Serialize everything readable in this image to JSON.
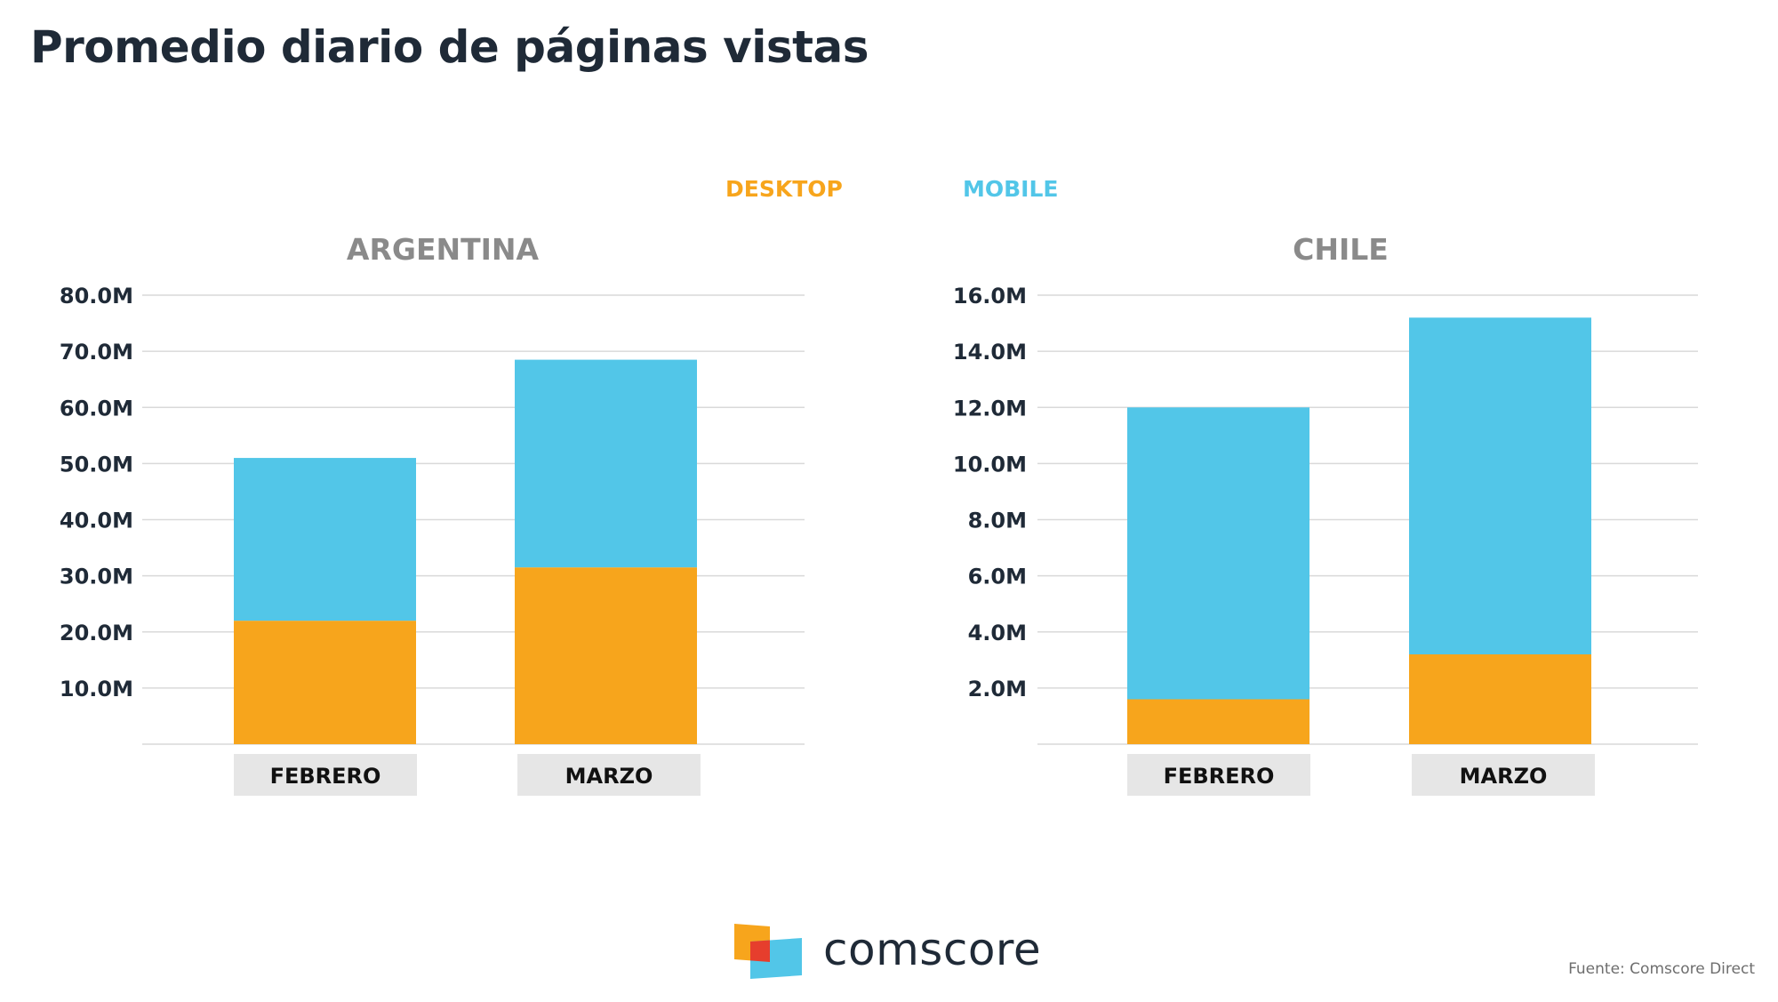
{
  "title": "Promedio diario de páginas vistas",
  "legend": {
    "desktop": "DESKTOP",
    "mobile": "MOBILE"
  },
  "colors": {
    "desktop": "#f7a51c",
    "mobile": "#52c6e8",
    "title": "#1f2a37",
    "panel_title": "#8a8a8a",
    "grid": "#d9d9d9",
    "category_box": "#e6e6e6"
  },
  "chart_data": [
    {
      "type": "bar",
      "stacked": true,
      "title": "ARGENTINA",
      "categories": [
        "FEBRERO",
        "MARZO"
      ],
      "series": [
        {
          "name": "DESKTOP",
          "values": [
            22.0,
            31.5
          ]
        },
        {
          "name": "MOBILE",
          "values": [
            29.0,
            37.0
          ]
        }
      ],
      "ylim": [
        0,
        80
      ],
      "yticks": [
        10,
        20,
        30,
        40,
        50,
        60,
        70,
        80
      ],
      "ytick_labels": [
        "10.0M",
        "20.0M",
        "30.0M",
        "40.0M",
        "50.0M",
        "60.0M",
        "70.0M",
        "80.0M"
      ],
      "grid": true,
      "legend": "top-center"
    },
    {
      "type": "bar",
      "stacked": true,
      "title": "CHILE",
      "categories": [
        "FEBRERO",
        "MARZO"
      ],
      "series": [
        {
          "name": "DESKTOP",
          "values": [
            1.6,
            3.2
          ]
        },
        {
          "name": "MOBILE",
          "values": [
            10.4,
            12.0
          ]
        }
      ],
      "ylim": [
        0,
        16
      ],
      "yticks": [
        2,
        4,
        6,
        8,
        10,
        12,
        14,
        16
      ],
      "ytick_labels": [
        "2.0M",
        "4.0M",
        "6.0M",
        "8.0M",
        "10.0M",
        "12.0M",
        "14.0M",
        "16.0M"
      ],
      "grid": true,
      "legend": "top-center"
    }
  ],
  "logo": {
    "text": "comscore",
    "icon": "comscore-logo-icon"
  },
  "source": "Fuente: Comscore Direct"
}
